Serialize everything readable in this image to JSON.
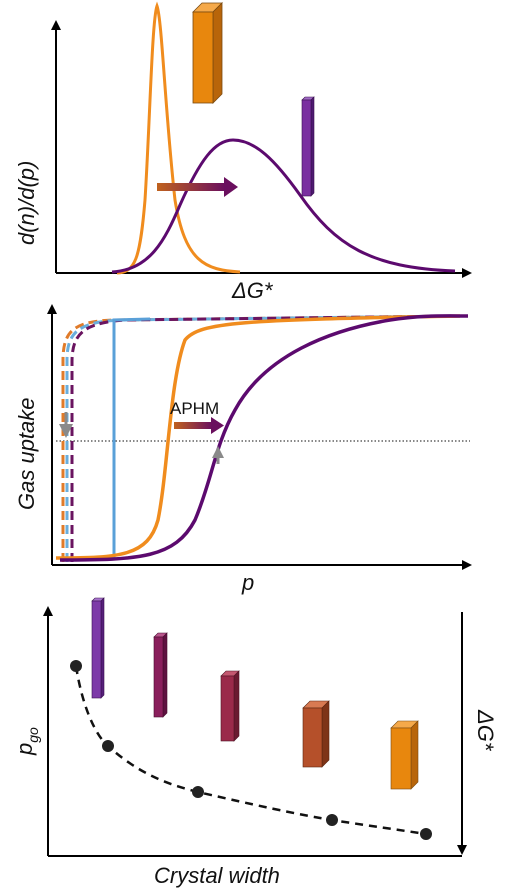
{
  "panels": {
    "top": {
      "x_label": "ΔG*",
      "y_label": "d(n)/d(p)",
      "colors": {
        "narrow_curve": "#f08c1e",
        "broad_curve": "#5c0a6e",
        "orange_bar": "#e8870d",
        "purple_bar": "#7a2fa0",
        "arrow_start": "#c0621e",
        "arrow_end": "#6a0f5e"
      }
    },
    "middle": {
      "x_label": "p",
      "y_label": "Gas uptake",
      "annotation": "APHM",
      "colors": {
        "orange_curve": "#f08c1e",
        "purple_curve": "#5c0a6e",
        "blue_line": "#5aa0d8",
        "dashed_a": "#e07b2a",
        "dashed_b": "#6aaedc",
        "dashed_c": "#6a1460",
        "gray_arrow": "#8a8a8a"
      }
    },
    "bottom": {
      "x_label": "Crystal width",
      "y_label_left": "p",
      "y_label_left_subscript": "go",
      "y_label_right": "ΔG*",
      "colors": {
        "bar_1": "#7d3aa8",
        "bar_2": "#8a1f5c",
        "bar_3": "#9a2a4a",
        "bar_4": "#b5502a",
        "bar_5": "#e8870d",
        "points": "#222222"
      }
    }
  }
}
